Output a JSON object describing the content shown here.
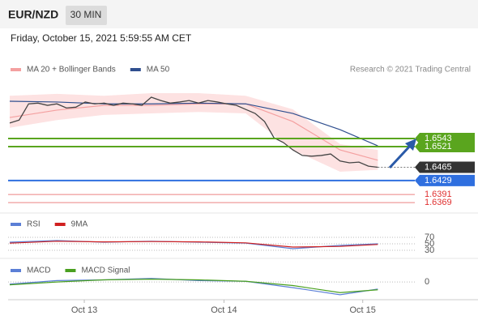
{
  "header": {
    "symbol": "EUR/NZD",
    "interval": "30 MIN",
    "date": "Friday, October 15, 2021 5:59:55 AM CET"
  },
  "chart_data": [
    {
      "type": "line",
      "attribution": "Research © 2021 Trading Central",
      "xlim": [
        0,
        40
      ],
      "xticks": [
        {
          "value": 7.9,
          "label": "Oct 13"
        },
        {
          "value": 22.7,
          "label": "Oct 14"
        },
        {
          "value": 37.4,
          "label": "Oct 15"
        }
      ],
      "ylim": [
        1.6343,
        1.671
      ],
      "price": {
        "color": "#444444",
        "values": [
          1.6585,
          1.6593,
          1.6637,
          1.6639,
          1.6633,
          1.6637,
          1.6626,
          1.6628,
          1.6642,
          1.6637,
          1.6639,
          1.6633,
          1.6639,
          1.6637,
          1.6633,
          1.6655,
          1.6646,
          1.6639,
          1.6642,
          1.6646,
          1.6639,
          1.6646,
          1.6642,
          1.6637,
          1.6633,
          1.6622,
          1.6611,
          1.6589,
          1.6545,
          1.6532,
          1.6512,
          1.6497,
          1.6495,
          1.6497,
          1.6501,
          1.6482,
          1.6477,
          1.6479,
          1.6468,
          1.6465
        ]
      },
      "series": [
        {
          "name": "MA 20 + Bollinger Bands",
          "color": "#f4a0a0",
          "band_color": "#fde2e2",
          "x": [
            0,
            5,
            10,
            15,
            20,
            25,
            30,
            35,
            39
          ],
          "values": [
            1.66,
            1.662,
            1.6633,
            1.6633,
            1.6637,
            1.6637,
            1.6589,
            1.6512,
            1.6484
          ],
          "upper": [
            1.6659,
            1.6664,
            1.6659,
            1.6666,
            1.6666,
            1.6659,
            1.6622,
            1.6528,
            1.6512
          ],
          "lower": [
            1.6572,
            1.6593,
            1.6607,
            1.6611,
            1.6615,
            1.6611,
            1.6512,
            1.6453,
            1.6458
          ]
        },
        {
          "name": "MA 50",
          "color": "#2f4f8f",
          "x": [
            0,
            5,
            10,
            15,
            20,
            25,
            30,
            35,
            39
          ],
          "values": [
            1.6644,
            1.6642,
            1.6637,
            1.6637,
            1.6639,
            1.6637,
            1.6611,
            1.6567,
            1.6523
          ]
        }
      ],
      "levels": [
        {
          "value": 1.6543,
          "color": "#5aa51e",
          "box": true
        },
        {
          "value": 1.6521,
          "color": "#5aa51e",
          "box": true
        },
        {
          "value": 1.6465,
          "color": "#333333",
          "box": true
        },
        {
          "value": 1.6429,
          "color": "#2f6fdf",
          "box": true
        },
        {
          "value": 1.6391,
          "color": "#e03030",
          "box": false
        },
        {
          "value": 1.6369,
          "color": "#e03030",
          "box": false
        }
      ]
    },
    {
      "type": "line",
      "ylim": [
        0,
        100
      ],
      "yticks": [
        30,
        50,
        70
      ],
      "series": [
        {
          "name": "RSI",
          "color": "#5b7fd6",
          "x": [
            0,
            5,
            10,
            15,
            20,
            25,
            30,
            35,
            39
          ],
          "values": [
            55,
            60,
            55,
            58,
            55,
            52,
            35,
            45,
            50
          ]
        },
        {
          "name": "9MA",
          "color": "#d02020",
          "x": [
            0,
            5,
            10,
            15,
            20,
            25,
            30,
            35,
            39
          ],
          "values": [
            52,
            58,
            56,
            57,
            56,
            53,
            40,
            42,
            48
          ]
        }
      ]
    },
    {
      "type": "line",
      "ylim": [
        -0.0025,
        0.0015
      ],
      "yticks": [
        0
      ],
      "series": [
        {
          "name": "MACD",
          "color": "#5b7fd6",
          "x": [
            0,
            5,
            10,
            15,
            20,
            25,
            30,
            35,
            39
          ],
          "values": [
            -0.0003,
            0.0002,
            0.0003,
            0.0005,
            0.0002,
            0.0001,
            -0.0008,
            -0.0018,
            -0.001
          ]
        },
        {
          "name": "MACD Signal",
          "color": "#4aa020",
          "x": [
            0,
            5,
            10,
            15,
            20,
            25,
            30,
            35,
            39
          ],
          "values": [
            -0.0004,
            0.0,
            0.0003,
            0.0004,
            0.0003,
            0.0001,
            -0.0005,
            -0.0015,
            -0.0011
          ]
        }
      ]
    }
  ]
}
